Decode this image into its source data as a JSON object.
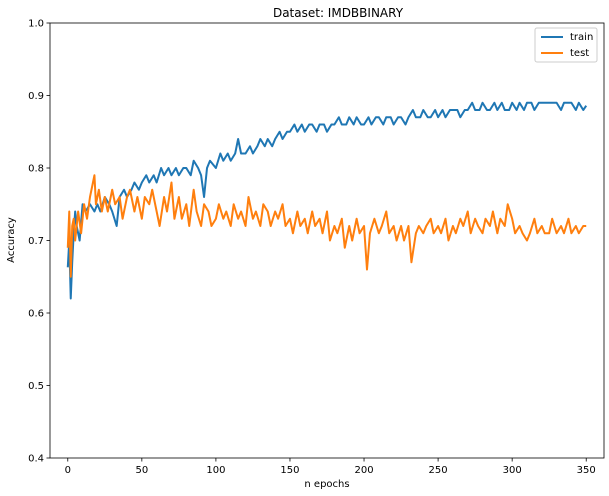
{
  "chart_data": {
    "type": "line",
    "title": "Dataset: IMDBBINARY",
    "xlabel": "n epochs",
    "ylabel": "Accuracy",
    "xlim": [
      -12,
      362
    ],
    "ylim": [
      0.4,
      1.0
    ],
    "xticks": [
      0,
      50,
      100,
      150,
      200,
      250,
      300,
      350
    ],
    "yticks": [
      0.4,
      0.5,
      0.6,
      0.7,
      0.8,
      0.9,
      1.0
    ],
    "grid": false,
    "legend_position": "top-right",
    "series": [
      {
        "name": "train",
        "color": "#1f77b4",
        "points": [
          [
            0,
            0.663
          ],
          [
            1,
            0.7
          ],
          [
            2,
            0.62
          ],
          [
            3,
            0.67
          ],
          [
            4,
            0.71
          ],
          [
            5,
            0.74
          ],
          [
            6,
            0.72
          ],
          [
            8,
            0.7
          ],
          [
            10,
            0.75
          ],
          [
            12,
            0.74
          ],
          [
            15,
            0.75
          ],
          [
            18,
            0.74
          ],
          [
            20,
            0.75
          ],
          [
            22,
            0.74
          ],
          [
            25,
            0.76
          ],
          [
            28,
            0.75
          ],
          [
            30,
            0.74
          ],
          [
            33,
            0.72
          ],
          [
            35,
            0.76
          ],
          [
            38,
            0.77
          ],
          [
            40,
            0.76
          ],
          [
            43,
            0.77
          ],
          [
            45,
            0.78
          ],
          [
            48,
            0.77
          ],
          [
            50,
            0.78
          ],
          [
            53,
            0.79
          ],
          [
            55,
            0.78
          ],
          [
            58,
            0.79
          ],
          [
            60,
            0.78
          ],
          [
            63,
            0.8
          ],
          [
            65,
            0.79
          ],
          [
            68,
            0.8
          ],
          [
            70,
            0.79
          ],
          [
            73,
            0.8
          ],
          [
            75,
            0.79
          ],
          [
            78,
            0.8
          ],
          [
            80,
            0.8
          ],
          [
            83,
            0.79
          ],
          [
            85,
            0.81
          ],
          [
            88,
            0.8
          ],
          [
            90,
            0.79
          ],
          [
            92,
            0.76
          ],
          [
            94,
            0.8
          ],
          [
            96,
            0.81
          ],
          [
            100,
            0.8
          ],
          [
            103,
            0.82
          ],
          [
            105,
            0.81
          ],
          [
            108,
            0.82
          ],
          [
            110,
            0.81
          ],
          [
            113,
            0.82
          ],
          [
            115,
            0.84
          ],
          [
            117,
            0.82
          ],
          [
            120,
            0.82
          ],
          [
            123,
            0.83
          ],
          [
            125,
            0.82
          ],
          [
            128,
            0.83
          ],
          [
            130,
            0.84
          ],
          [
            133,
            0.83
          ],
          [
            135,
            0.84
          ],
          [
            138,
            0.83
          ],
          [
            140,
            0.84
          ],
          [
            143,
            0.85
          ],
          [
            145,
            0.84
          ],
          [
            148,
            0.85
          ],
          [
            150,
            0.85
          ],
          [
            153,
            0.86
          ],
          [
            155,
            0.85
          ],
          [
            158,
            0.86
          ],
          [
            160,
            0.85
          ],
          [
            163,
            0.86
          ],
          [
            165,
            0.86
          ],
          [
            168,
            0.85
          ],
          [
            170,
            0.86
          ],
          [
            173,
            0.86
          ],
          [
            175,
            0.85
          ],
          [
            178,
            0.86
          ],
          [
            180,
            0.86
          ],
          [
            183,
            0.87
          ],
          [
            185,
            0.86
          ],
          [
            188,
            0.86
          ],
          [
            190,
            0.87
          ],
          [
            193,
            0.86
          ],
          [
            195,
            0.87
          ],
          [
            198,
            0.86
          ],
          [
            200,
            0.86
          ],
          [
            203,
            0.87
          ],
          [
            205,
            0.86
          ],
          [
            208,
            0.87
          ],
          [
            210,
            0.87
          ],
          [
            213,
            0.86
          ],
          [
            215,
            0.87
          ],
          [
            218,
            0.87
          ],
          [
            220,
            0.86
          ],
          [
            223,
            0.87
          ],
          [
            225,
            0.87
          ],
          [
            228,
            0.86
          ],
          [
            230,
            0.87
          ],
          [
            233,
            0.88
          ],
          [
            235,
            0.87
          ],
          [
            238,
            0.87
          ],
          [
            240,
            0.88
          ],
          [
            243,
            0.87
          ],
          [
            245,
            0.87
          ],
          [
            248,
            0.88
          ],
          [
            250,
            0.87
          ],
          [
            253,
            0.88
          ],
          [
            255,
            0.87
          ],
          [
            258,
            0.88
          ],
          [
            260,
            0.88
          ],
          [
            263,
            0.88
          ],
          [
            265,
            0.87
          ],
          [
            268,
            0.88
          ],
          [
            270,
            0.88
          ],
          [
            273,
            0.89
          ],
          [
            275,
            0.88
          ],
          [
            278,
            0.88
          ],
          [
            280,
            0.89
          ],
          [
            283,
            0.88
          ],
          [
            285,
            0.88
          ],
          [
            288,
            0.89
          ],
          [
            290,
            0.88
          ],
          [
            293,
            0.89
          ],
          [
            295,
            0.88
          ],
          [
            298,
            0.88
          ],
          [
            300,
            0.89
          ],
          [
            303,
            0.88
          ],
          [
            305,
            0.89
          ],
          [
            308,
            0.88
          ],
          [
            310,
            0.89
          ],
          [
            313,
            0.89
          ],
          [
            315,
            0.88
          ],
          [
            318,
            0.89
          ],
          [
            320,
            0.89
          ],
          [
            323,
            0.89
          ],
          [
            325,
            0.89
          ],
          [
            328,
            0.89
          ],
          [
            330,
            0.89
          ],
          [
            333,
            0.88
          ],
          [
            335,
            0.89
          ],
          [
            338,
            0.89
          ],
          [
            340,
            0.89
          ],
          [
            343,
            0.88
          ],
          [
            345,
            0.89
          ],
          [
            348,
            0.88
          ],
          [
            350,
            0.886
          ]
        ]
      },
      {
        "name": "test",
        "color": "#ff7f0e",
        "points": [
          [
            0,
            0.69
          ],
          [
            1,
            0.74
          ],
          [
            2,
            0.65
          ],
          [
            3,
            0.72
          ],
          [
            4,
            0.73
          ],
          [
            5,
            0.7
          ],
          [
            7,
            0.74
          ],
          [
            9,
            0.71
          ],
          [
            11,
            0.75
          ],
          [
            13,
            0.73
          ],
          [
            15,
            0.76
          ],
          [
            17,
            0.78
          ],
          [
            18,
            0.79
          ],
          [
            19,
            0.75
          ],
          [
            21,
            0.77
          ],
          [
            23,
            0.74
          ],
          [
            25,
            0.76
          ],
          [
            27,
            0.74
          ],
          [
            30,
            0.77
          ],
          [
            32,
            0.75
          ],
          [
            35,
            0.76
          ],
          [
            37,
            0.73
          ],
          [
            40,
            0.76
          ],
          [
            42,
            0.77
          ],
          [
            45,
            0.74
          ],
          [
            47,
            0.76
          ],
          [
            50,
            0.73
          ],
          [
            52,
            0.76
          ],
          [
            55,
            0.75
          ],
          [
            57,
            0.77
          ],
          [
            60,
            0.74
          ],
          [
            62,
            0.72
          ],
          [
            65,
            0.76
          ],
          [
            67,
            0.74
          ],
          [
            70,
            0.78
          ],
          [
            72,
            0.73
          ],
          [
            75,
            0.76
          ],
          [
            77,
            0.73
          ],
          [
            80,
            0.75
          ],
          [
            82,
            0.72
          ],
          [
            85,
            0.77
          ],
          [
            87,
            0.74
          ],
          [
            90,
            0.72
          ],
          [
            92,
            0.75
          ],
          [
            95,
            0.74
          ],
          [
            97,
            0.72
          ],
          [
            100,
            0.73
          ],
          [
            102,
            0.75
          ],
          [
            105,
            0.73
          ],
          [
            107,
            0.74
          ],
          [
            110,
            0.72
          ],
          [
            112,
            0.75
          ],
          [
            115,
            0.73
          ],
          [
            117,
            0.74
          ],
          [
            120,
            0.72
          ],
          [
            122,
            0.76
          ],
          [
            125,
            0.73
          ],
          [
            127,
            0.74
          ],
          [
            130,
            0.72
          ],
          [
            132,
            0.75
          ],
          [
            135,
            0.74
          ],
          [
            137,
            0.72
          ],
          [
            140,
            0.74
          ],
          [
            142,
            0.73
          ],
          [
            145,
            0.75
          ],
          [
            147,
            0.72
          ],
          [
            150,
            0.73
          ],
          [
            152,
            0.71
          ],
          [
            155,
            0.74
          ],
          [
            157,
            0.72
          ],
          [
            160,
            0.73
          ],
          [
            162,
            0.71
          ],
          [
            165,
            0.74
          ],
          [
            167,
            0.72
          ],
          [
            170,
            0.73
          ],
          [
            172,
            0.71
          ],
          [
            175,
            0.74
          ],
          [
            177,
            0.7
          ],
          [
            180,
            0.72
          ],
          [
            182,
            0.71
          ],
          [
            185,
            0.73
          ],
          [
            187,
            0.69
          ],
          [
            190,
            0.72
          ],
          [
            192,
            0.7
          ],
          [
            195,
            0.73
          ],
          [
            197,
            0.71
          ],
          [
            200,
            0.72
          ],
          [
            202,
            0.66
          ],
          [
            204,
            0.71
          ],
          [
            207,
            0.73
          ],
          [
            210,
            0.71
          ],
          [
            212,
            0.72
          ],
          [
            215,
            0.74
          ],
          [
            217,
            0.71
          ],
          [
            220,
            0.72
          ],
          [
            222,
            0.7
          ],
          [
            225,
            0.72
          ],
          [
            227,
            0.7
          ],
          [
            230,
            0.72
          ],
          [
            232,
            0.67
          ],
          [
            235,
            0.71
          ],
          [
            237,
            0.72
          ],
          [
            240,
            0.71
          ],
          [
            242,
            0.72
          ],
          [
            245,
            0.73
          ],
          [
            247,
            0.71
          ],
          [
            250,
            0.72
          ],
          [
            252,
            0.71
          ],
          [
            255,
            0.73
          ],
          [
            257,
            0.7
          ],
          [
            260,
            0.72
          ],
          [
            262,
            0.71
          ],
          [
            265,
            0.73
          ],
          [
            267,
            0.72
          ],
          [
            270,
            0.74
          ],
          [
            272,
            0.71
          ],
          [
            275,
            0.73
          ],
          [
            277,
            0.72
          ],
          [
            280,
            0.71
          ],
          [
            282,
            0.73
          ],
          [
            285,
            0.72
          ],
          [
            287,
            0.74
          ],
          [
            290,
            0.71
          ],
          [
            292,
            0.73
          ],
          [
            295,
            0.72
          ],
          [
            297,
            0.75
          ],
          [
            300,
            0.73
          ],
          [
            302,
            0.71
          ],
          [
            305,
            0.72
          ],
          [
            307,
            0.71
          ],
          [
            310,
            0.7
          ],
          [
            312,
            0.71
          ],
          [
            315,
            0.73
          ],
          [
            317,
            0.71
          ],
          [
            320,
            0.72
          ],
          [
            322,
            0.71
          ],
          [
            325,
            0.71
          ],
          [
            327,
            0.73
          ],
          [
            330,
            0.71
          ],
          [
            333,
            0.72
          ],
          [
            335,
            0.71
          ],
          [
            338,
            0.73
          ],
          [
            340,
            0.71
          ],
          [
            343,
            0.72
          ],
          [
            345,
            0.71
          ],
          [
            348,
            0.72
          ],
          [
            350,
            0.72
          ]
        ]
      }
    ]
  }
}
